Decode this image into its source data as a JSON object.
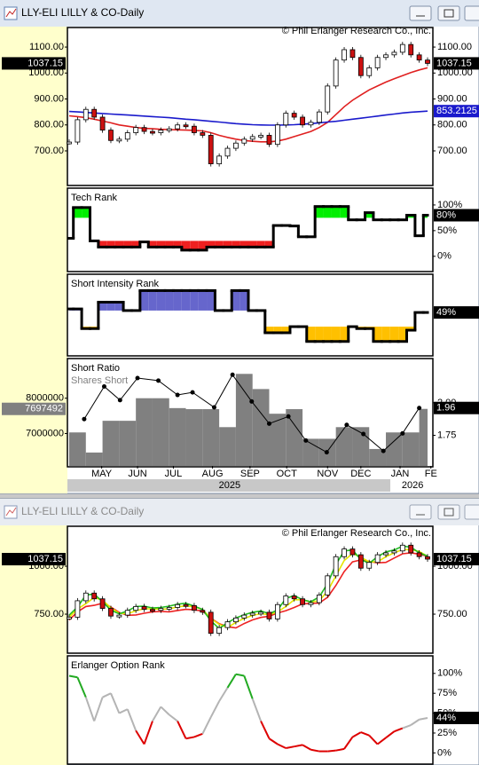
{
  "windows": [
    {
      "title": "LLY-ELI LILLY & CO-Daily",
      "copyright": "© Phil Erlanger Research Co., Inc."
    },
    {
      "title": "LLY-ELI LILLY & CO-Daily",
      "copyright": "© Phil Erlanger Research Co., Inc."
    }
  ],
  "chart_data": [
    {
      "type": "candlestick",
      "xlim": [
        0,
        43
      ],
      "ylim": [
        570,
        1172
      ],
      "yticks": [
        {
          "value": 1100,
          "label": "1100.00"
        },
        {
          "value": 1000,
          "label": "1000.00"
        },
        {
          "value": 900,
          "label": "900.00"
        },
        {
          "value": 800,
          "label": "800.00"
        },
        {
          "value": 700,
          "label": "700.00"
        }
      ],
      "y_axis_sides": [
        "left",
        "right"
      ],
      "up_color": "#ffffff",
      "down_color": "#cc1111",
      "values": [
        734,
        820,
        860,
        830,
        780,
        740,
        745,
        770,
        790,
        775,
        770,
        780,
        785,
        800,
        795,
        770,
        760,
        650,
        680,
        710,
        730,
        745,
        755,
        760,
        725,
        800,
        845,
        830,
        800,
        810,
        850,
        950,
        1050,
        1090,
        1060,
        990,
        1020,
        1060,
        1070,
        1080,
        1110,
        1070,
        1050,
        1037.15
      ],
      "lines": [
        {
          "color": "#e02020",
          "values": [
            835,
            832,
            828,
            822,
            815,
            808,
            800,
            795,
            790,
            787,
            785,
            783,
            782,
            781,
            780,
            779,
            777,
            770,
            760,
            752,
            745,
            740,
            737,
            735,
            735,
            738,
            745,
            755,
            765,
            775,
            790,
            810,
            840,
            870,
            895,
            915,
            935,
            950,
            965,
            978,
            990,
            1002,
            1012,
            1020
          ]
        },
        {
          "color": "#1a1acc",
          "value_box": true,
          "values": [
            852,
            850,
            848,
            846,
            844,
            842,
            840,
            838,
            836,
            834,
            832,
            830,
            828,
            825,
            822,
            820,
            817,
            814,
            811,
            808,
            805,
            803,
            801,
            800,
            799,
            799,
            800,
            801,
            803,
            805,
            808,
            811,
            814,
            818,
            822,
            826,
            830,
            834,
            838,
            842,
            846,
            849,
            851,
            853.2125
          ]
        }
      ]
    },
    {
      "type": "step",
      "title": "Tech Rank",
      "xlim": [
        0,
        43
      ],
      "ylim": [
        -28,
        131
      ],
      "yticks": [
        {
          "value": 100,
          "label": "100%"
        },
        {
          "value": 50,
          "label": "50%"
        },
        {
          "value": 0,
          "label": "0%"
        }
      ],
      "y_axis_sides": [
        "right"
      ],
      "color": "#000000",
      "above_color": "#00ee00",
      "below_color": "#ee2020",
      "values": [
        35,
        95,
        95,
        30,
        18,
        18,
        18,
        18,
        18,
        28,
        18,
        18,
        18,
        18,
        12,
        12,
        12,
        18,
        18,
        18,
        18,
        18,
        18,
        18,
        18,
        60,
        60,
        59,
        38,
        38,
        97,
        97,
        97,
        97,
        71,
        71,
        85,
        71,
        71,
        71,
        71,
        80,
        40,
        80
      ],
      "last_value_label": "80%"
    },
    {
      "type": "step",
      "title": "Short Intensity Rank",
      "xlim": [
        0,
        43
      ],
      "ylim": [
        -17,
        107
      ],
      "y_axis_sides": [
        "right"
      ],
      "color": "#000000",
      "above_color": "#6666cc",
      "below_color": "#ffc000",
      "values": [
        54.5,
        54.5,
        24,
        24,
        65,
        65,
        65,
        52,
        52,
        83,
        83,
        83,
        83,
        83,
        83,
        83,
        83,
        83,
        52,
        52,
        83,
        83,
        52,
        52,
        17.5,
        17.5,
        17.5,
        27,
        27,
        4,
        4,
        4,
        4,
        4,
        27,
        24,
        24,
        4,
        4,
        4,
        4,
        21.5,
        49,
        49
      ],
      "last_value_label": "49%"
    },
    {
      "type": "combo",
      "xlim": [
        0,
        43
      ],
      "ylim": [
        6080000,
        9100000
      ],
      "y2lim": [
        1.515,
        2.333
      ],
      "yticks": [
        8000000,
        7000000
      ],
      "y2ticks": [
        {
          "value": 2,
          "label": "2.00"
        },
        1.75
      ],
      "xticks": [
        {
          "value": 3.9,
          "label": "MAY"
        },
        {
          "value": 8.2,
          "label": "JUN"
        },
        {
          "value": 12.5,
          "label": "JUL"
        },
        {
          "value": 17.2,
          "label": "AUG"
        },
        {
          "value": 21.7,
          "label": "SEP"
        },
        {
          "value": 26.1,
          "label": "OCT"
        },
        {
          "value": 31,
          "label": "NOV"
        },
        {
          "value": 35,
          "label": "DEC"
        },
        {
          "value": 39.7,
          "label": "JAN"
        },
        {
          "value": 43.4,
          "label": "FE"
        }
      ],
      "year_ticks": [
        {
          "value": 19.25,
          "label": "2025"
        },
        {
          "value": 41.2,
          "label": "2026"
        }
      ],
      "series": [
        {
          "name": "Shares Short",
          "color": "#808080",
          "x": [
            0,
            2,
            4,
            6,
            8,
            10,
            12,
            14,
            16,
            18,
            20,
            22,
            24,
            26,
            28,
            30,
            32,
            34,
            36,
            38,
            40,
            42
          ],
          "values": [
            7030000,
            6460000,
            7360000,
            7360000,
            8000000,
            8000000,
            7720000,
            7690000,
            7690000,
            7180000,
            8690000,
            8260000,
            7560000,
            7690000,
            6850000,
            6850000,
            7180000,
            7180000,
            6560000,
            7030000,
            7030000,
            7697492
          ]
        },
        {
          "name": "Short Ratio",
          "color": "#000000",
          "axis": "y2",
          "x": [
            1.8,
            4.2,
            6.1,
            8.2,
            10.7,
            13,
            14.8,
            17.4,
            19.6,
            21.9,
            24,
            26.3,
            28.4,
            30.9,
            33.3,
            35.3,
            37.7,
            40,
            42
          ],
          "values": [
            1.875,
            2.125,
            2.02,
            2.19,
            2.17,
            2.06,
            2.08,
            1.965,
            2.215,
            2.01,
            1.84,
            1.895,
            1.71,
            1.62,
            1.83,
            1.76,
            1.63,
            1.765,
            1.96
          ]
        }
      ]
    },
    {
      "type": "candlestick",
      "xlim": [
        0,
        43
      ],
      "ylim": [
        551,
        1204
      ],
      "yticks": [
        {
          "value": 1000,
          "label": "1000.00"
        },
        {
          "value": 750,
          "label": "750.00"
        }
      ],
      "y_axis_sides": [
        "left",
        "right"
      ],
      "up_color": "#ffffff",
      "down_color": "#cc1111",
      "values": [
        734,
        820,
        860,
        830,
        780,
        740,
        745,
        770,
        790,
        775,
        770,
        780,
        785,
        800,
        795,
        770,
        760,
        650,
        680,
        710,
        730,
        745,
        755,
        760,
        725,
        800,
        845,
        830,
        800,
        810,
        850,
        950,
        1050,
        1090,
        1060,
        990,
        1020,
        1060,
        1070,
        1080,
        1110,
        1070,
        1050,
        1037.15
      ],
      "lines": [
        {
          "color": "#ee2222",
          "values": [
            719,
            762,
            790,
            796,
            807,
            787,
            759,
            744,
            746,
            755,
            762,
            764,
            762,
            769,
            775,
            773,
            766,
            729,
            700,
            685,
            678,
            701,
            720,
            733,
            739,
            756,
            768,
            785,
            804,
            806,
            808,
            838,
            900,
            972,
            1023,
            1033,
            1025,
            1018,
            1020,
            1043,
            1065,
            1070,
            1063,
            1052
          ]
        },
        {
          "color": "#e6e600",
          "values": [
            734,
            777,
            805,
            837,
            823,
            783,
            755,
            752,
            768,
            778,
            778,
            775,
            778,
            788,
            793,
            788,
            775,
            727,
            697,
            680,
            707,
            728,
            743,
            753,
            747,
            762,
            790,
            825,
            825,
            813,
            820,
            870,
            950,
            1030,
            1067,
            1047,
            1023,
            1023,
            1050,
            1070,
            1087,
            1087,
            1077,
            1052
          ]
        },
        {
          "color": "#22bb22",
          "values": [
            745,
            787,
            850,
            855,
            815,
            770,
            752,
            767,
            790,
            792,
            782,
            785,
            792,
            802,
            807,
            792,
            775,
            715,
            675,
            705,
            730,
            747,
            760,
            767,
            752,
            772,
            832,
            847,
            825,
            815,
            840,
            910,
            1010,
            1080,
            1085,
            1035,
            1015,
            1050,
            1075,
            1085,
            1105,
            1100,
            1070,
            1053
          ]
        }
      ]
    },
    {
      "type": "line",
      "title": "Erlanger Option Rank",
      "xlim": [
        0,
        43
      ],
      "ylim": [
        -13,
        121
      ],
      "yticks": [
        {
          "value": 100,
          "label": "100%"
        },
        {
          "value": 75,
          "label": "75%"
        },
        {
          "value": 50,
          "label": "50%"
        },
        {
          "value": 25,
          "label": "25%"
        },
        {
          "value": 0,
          "label": "0%"
        }
      ],
      "y_axis_sides": [
        "right"
      ],
      "high_color": "#22aa22",
      "mid_color": "#b4b4b4",
      "low_color": "#dd0000",
      "values": [
        97,
        95,
        70,
        40,
        70,
        75,
        50,
        55,
        28,
        11,
        40,
        58,
        48,
        40,
        18,
        20,
        24,
        45,
        65,
        82,
        99,
        97,
        68,
        40,
        18,
        11,
        6,
        8,
        10,
        4,
        2,
        2,
        3,
        5,
        20,
        26,
        22,
        11,
        19,
        27,
        31,
        35,
        42,
        44
      ],
      "last_value_label": "44%"
    }
  ]
}
